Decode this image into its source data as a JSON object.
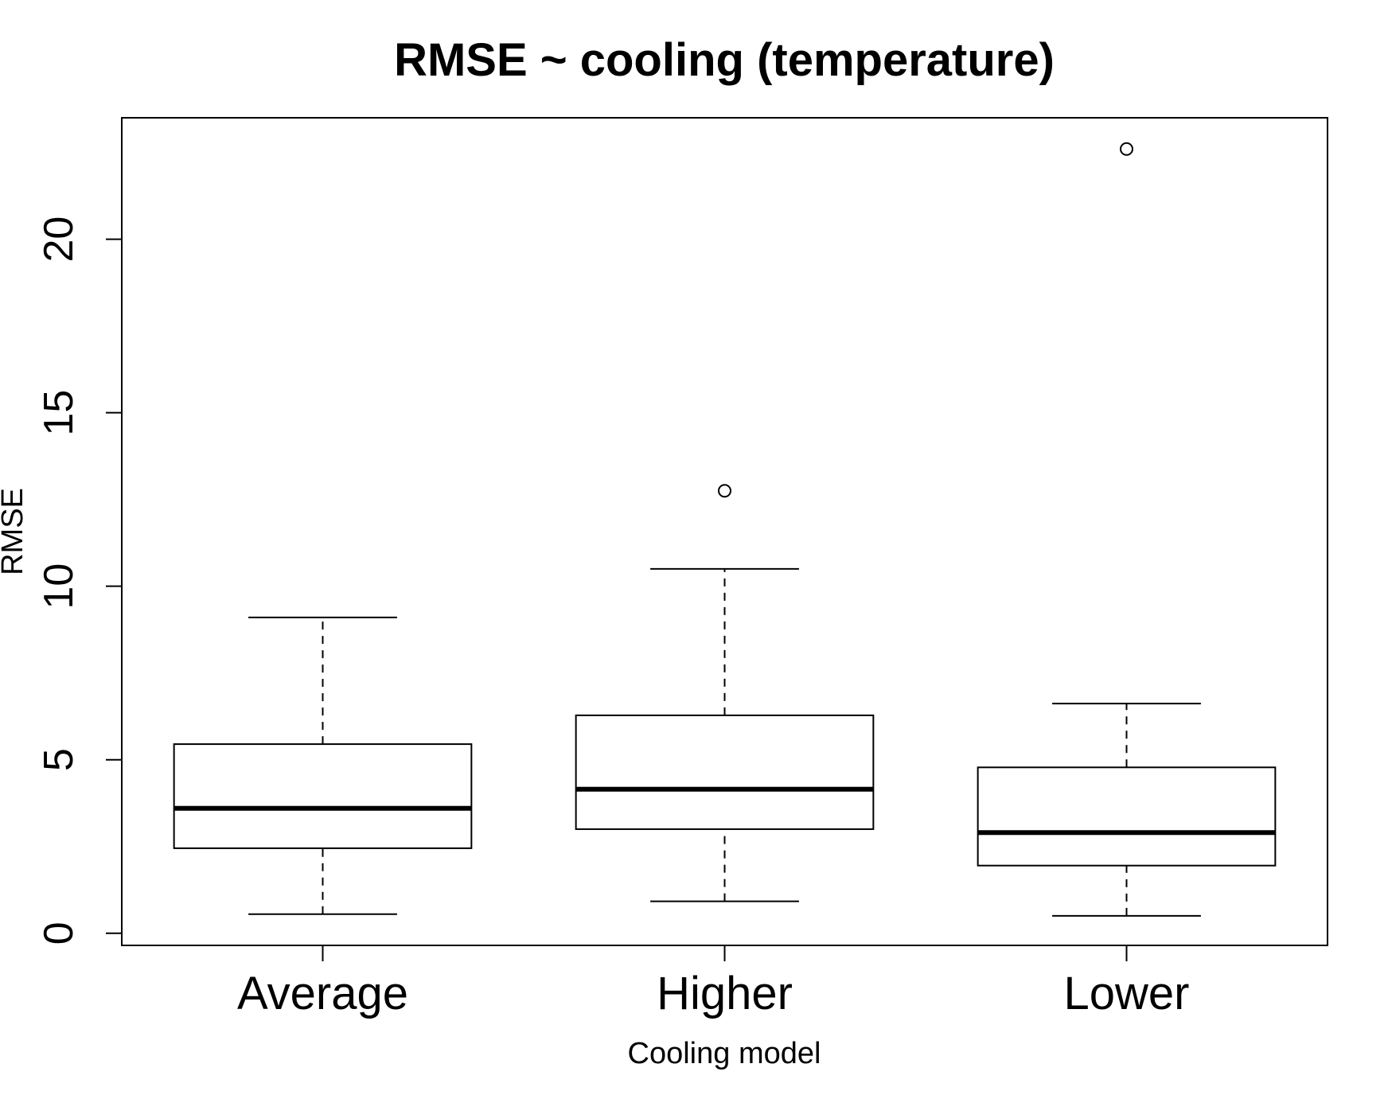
{
  "chart_data": {
    "type": "boxplot",
    "title": "RMSE ~ cooling (temperature)",
    "xlabel": "Cooling model",
    "ylabel": "RMSE",
    "ylim": [
      -0.35,
      23.5
    ],
    "yticks": [
      0,
      5,
      10,
      15,
      20
    ],
    "categories": [
      "Average",
      "Higher",
      "Lower"
    ],
    "boxes": [
      {
        "category": "Average",
        "whisker_low": 0.55,
        "q1": 2.45,
        "median": 3.6,
        "q3": 5.45,
        "whisker_high": 9.1,
        "outliers": []
      },
      {
        "category": "Higher",
        "whisker_low": 0.92,
        "q1": 3.0,
        "median": 4.15,
        "q3": 6.28,
        "whisker_high": 10.5,
        "outliers": [
          12.75
        ]
      },
      {
        "category": "Lower",
        "whisker_low": 0.5,
        "q1": 1.95,
        "median": 2.9,
        "q3": 4.78,
        "whisker_high": 6.62,
        "outliers": [
          22.6
        ]
      }
    ],
    "grid": false,
    "legend": "none"
  }
}
